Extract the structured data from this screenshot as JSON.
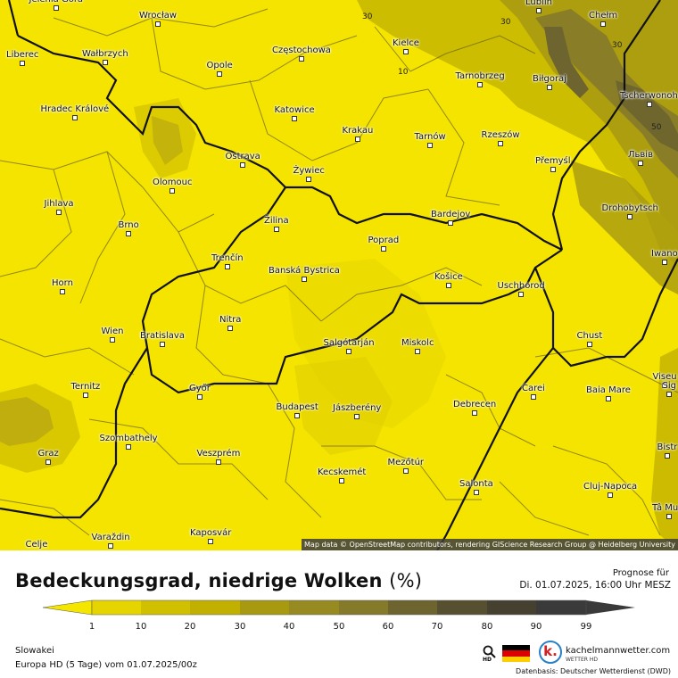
{
  "map": {
    "attribution": "Map data © OpenStreetMap contributors, rendering GIScience Research Group @ Heidelberg University",
    "cities": [
      {
        "name": "Wrocław",
        "pos": "tl"
      },
      {
        "name": "Liberec"
      },
      {
        "name": "Wałbrzych"
      },
      {
        "name": "Opole"
      },
      {
        "name": "Częstochowa"
      },
      {
        "name": "Kielce"
      },
      {
        "name": "Lublin"
      },
      {
        "name": "Chełm"
      },
      {
        "name": "Hradec Králové"
      },
      {
        "name": "Katowice"
      },
      {
        "name": "Tarnobrzeg"
      },
      {
        "name": "Biłgoraj"
      },
      {
        "name": "Tscherwonoh"
      },
      {
        "name": "Krakau"
      },
      {
        "name": "Tarnów"
      },
      {
        "name": "Rzeszów"
      },
      {
        "name": "Ostrava"
      },
      {
        "name": "Přemyśl"
      },
      {
        "name": "Львів"
      },
      {
        "name": "Olomouc"
      },
      {
        "name": "Żywiec"
      },
      {
        "name": "Jihlava"
      },
      {
        "name": "Drohobytsch"
      },
      {
        "name": "Brno"
      },
      {
        "name": "Žilina"
      },
      {
        "name": "Bardejov"
      },
      {
        "name": "Poprad"
      },
      {
        "name": "Trenčín"
      },
      {
        "name": "Iwano"
      },
      {
        "name": "Banská Bystrica"
      },
      {
        "name": "Košice"
      },
      {
        "name": "Horn"
      },
      {
        "name": "Uschhorod"
      },
      {
        "name": "Nitra"
      },
      {
        "name": "Wien"
      },
      {
        "name": "Bratislava"
      },
      {
        "name": "Chust"
      },
      {
        "name": "Salgótarján"
      },
      {
        "name": "Miskolc"
      },
      {
        "name": "Ternitz"
      },
      {
        "name": "Győr"
      },
      {
        "name": "Viseu"
      },
      {
        "name": "Sig"
      },
      {
        "name": "Carei"
      },
      {
        "name": "Baia Mare"
      },
      {
        "name": "Budapest"
      },
      {
        "name": "Jászberény"
      },
      {
        "name": "Debrecen"
      },
      {
        "name": "Szombathely"
      },
      {
        "name": "Bistr"
      },
      {
        "name": "Graz"
      },
      {
        "name": "Veszprém"
      },
      {
        "name": "Mezőtúr"
      },
      {
        "name": "Kecskemét"
      },
      {
        "name": "Salonta"
      },
      {
        "name": "Cluj-Napoca"
      },
      {
        "name": "Tâ Mu"
      },
      {
        "name": "Kaposvár"
      },
      {
        "name": "Varaždin"
      },
      {
        "name": "Celje"
      },
      {
        "name": "Jelenia Góra"
      }
    ],
    "contour_labels": [
      "30",
      "30",
      "30",
      "10",
      "50"
    ]
  },
  "footer": {
    "title": "Bedeckungsgrad, niedrige Wolken",
    "unit": "(%)",
    "forecast_label": "Prognose für",
    "forecast_date": "Di. 01.07.2025, 16:00 Uhr MESZ",
    "colorbar": {
      "ticks": [
        "1",
        "10",
        "20",
        "30",
        "40",
        "50",
        "60",
        "70",
        "80",
        "90",
        "99"
      ],
      "colors": [
        "#f5e600",
        "#e6d400",
        "#d0c000",
        "#c2b000",
        "#a89a10",
        "#978a20",
        "#857a2a",
        "#6d6430",
        "#575030",
        "#464030",
        "#3a3a3a"
      ]
    },
    "region": "Slowakei",
    "model_run": "Europa HD (5 Tage) vom  01.07.2025/00z",
    "hd_label": "HD",
    "brand": "kachelmannwetter.com",
    "brand_sub": "WETTER HD",
    "logo_letter": "k.",
    "source": "Datenbasis: Deutscher Wetterdienst (DWD)"
  }
}
